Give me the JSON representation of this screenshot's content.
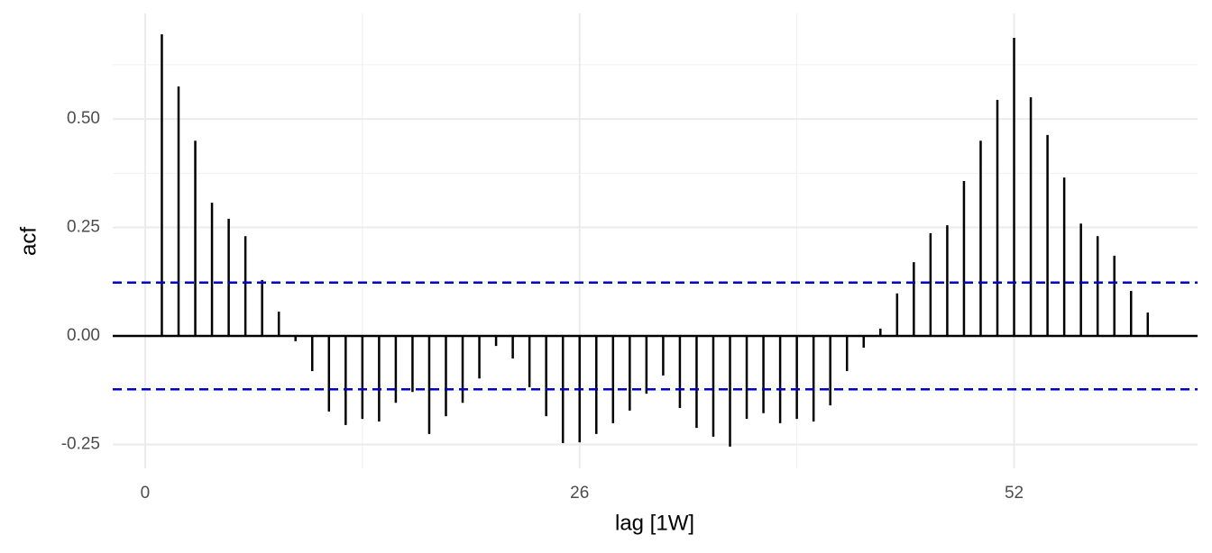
{
  "chart_data": {
    "type": "acf",
    "x_label": "lag [1W]",
    "y_label": "acf",
    "x": [
      1,
      2,
      3,
      4,
      5,
      6,
      7,
      8,
      9,
      10,
      11,
      12,
      13,
      14,
      15,
      16,
      17,
      18,
      19,
      20,
      21,
      22,
      23,
      24,
      25,
      26,
      27,
      28,
      29,
      30,
      31,
      32,
      33,
      34,
      35,
      36,
      37,
      38,
      39,
      40,
      41,
      42,
      43,
      44,
      45,
      46,
      47,
      48,
      49,
      50,
      51,
      52,
      53,
      54,
      55,
      56,
      57,
      58,
      59,
      60
    ],
    "values": [
      0.695,
      0.575,
      0.45,
      0.307,
      0.27,
      0.23,
      0.129,
      0.056,
      -0.012,
      -0.081,
      -0.174,
      -0.205,
      -0.191,
      -0.197,
      -0.154,
      -0.129,
      -0.226,
      -0.185,
      -0.154,
      -0.098,
      -0.023,
      -0.052,
      -0.118,
      -0.185,
      -0.247,
      -0.245,
      -0.226,
      -0.201,
      -0.172,
      -0.133,
      -0.091,
      -0.166,
      -0.212,
      -0.232,
      -0.255,
      -0.191,
      -0.178,
      -0.201,
      -0.191,
      -0.197,
      -0.16,
      -0.081,
      -0.027,
      0.017,
      0.098,
      0.17,
      0.237,
      0.255,
      0.357,
      0.45,
      0.544,
      0.687,
      0.55,
      0.463,
      0.365,
      0.259,
      0.23,
      0.185,
      0.104,
      0.054
    ],
    "color": "#000000",
    "ci_lines": [
      0.123,
      -0.123
    ],
    "ci_color": "#0000cc",
    "xlim": [
      -1.94,
      62.98
    ],
    "xticks": [
      0,
      26,
      52
    ],
    "ylim": [
      -0.305,
      0.743
    ],
    "yticks": [
      {
        "value": -0.25,
        "label": "-0.25"
      },
      {
        "value": 0,
        "label": "0.00"
      },
      {
        "value": 0.25,
        "label": "0.25"
      },
      {
        "value": 0.5,
        "label": "0.50"
      }
    ],
    "grid": true
  }
}
